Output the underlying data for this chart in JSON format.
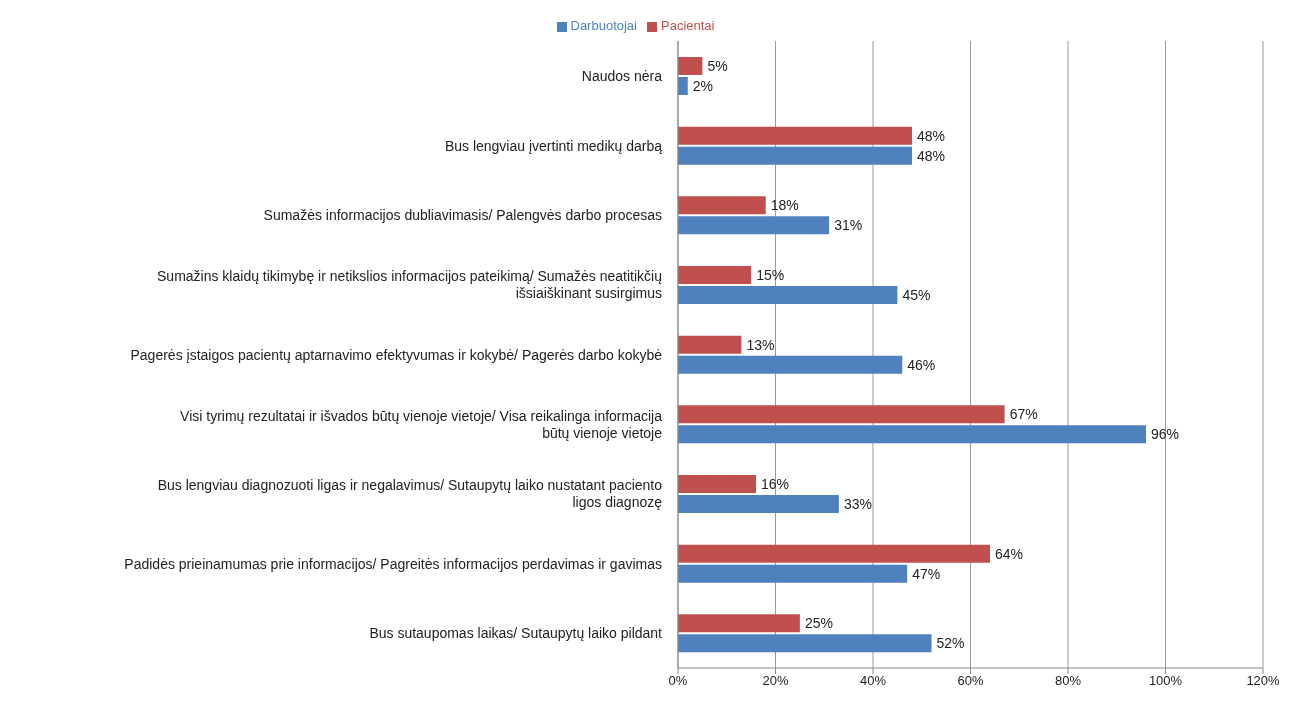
{
  "chart_data": {
    "type": "bar",
    "orientation": "horizontal",
    "categories": [
      "Naudos nėra",
      "Bus lengviau įvertinti medikų darbą",
      "Sumažės informacijos dubliavimasis/ Palengvės darbo procesas",
      "Sumažins klaidų tikimybę ir netikslios informacijos pateikimą/ Sumažės neatitikčių išsiaiškinant susirgimus",
      "Pagerės įstaigos pacientų aptarnavimo efektyvumas ir kokybė/ Pagerės darbo kokybė",
      "Visi tyrimų rezultatai ir išvados būtų vienoje vietoje/ Visa reikalinga informacija būtų vienoje vietoje",
      "Bus lengviau diagnozuoti ligas ir negalavimus/ Sutaupytų laiko nustatant paciento ligos diagnozę",
      "Padidės prieinamumas prie informacijos/ Pagreitės informacijos perdavimas ir gavimas",
      "Bus sutaupomas laikas/ Sutaupytų laiko pildant"
    ],
    "series": [
      {
        "name": "Pacientai",
        "color": "#c0504d",
        "values": [
          5,
          48,
          18,
          15,
          13,
          67,
          16,
          64,
          25
        ],
        "value_labels": [
          "5%",
          "48%",
          "18%",
          "15%",
          "13%",
          "67%",
          "16%",
          "64%",
          "25%"
        ]
      },
      {
        "name": "Darbuotojai",
        "color": "#4f81bd",
        "values": [
          2,
          48,
          31,
          45,
          46,
          96,
          33,
          47,
          52
        ],
        "value_labels": [
          "2%",
          "48%",
          "31%",
          "45%",
          "46%",
          "96%",
          "33%",
          "47%",
          "52%"
        ]
      }
    ],
    "xlim": [
      0,
      120
    ],
    "xticks": [
      {
        "value": 0,
        "label": "0%"
      },
      {
        "value": 20,
        "label": "20%"
      },
      {
        "value": 40,
        "label": "40%"
      },
      {
        "value": 60,
        "label": "60%"
      },
      {
        "value": 80,
        "label": "80%"
      },
      {
        "value": 100,
        "label": "100%"
      },
      {
        "value": 120,
        "label": "120%"
      }
    ],
    "grid": "x",
    "legend": "top"
  }
}
